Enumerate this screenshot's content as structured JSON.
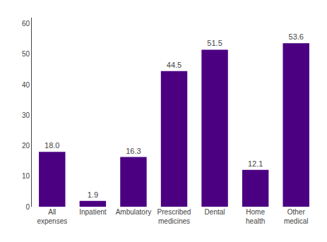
{
  "chart_data": {
    "type": "bar",
    "categories": [
      "All\nexpenses",
      "Inpatient",
      "Ambulatory",
      "Prescribed\nmedicines",
      "Dental",
      "Home\nhealth",
      "Other\nmedical"
    ],
    "values": [
      18.0,
      1.9,
      16.3,
      44.5,
      51.5,
      12.1,
      53.6
    ],
    "value_labels": [
      "18.0",
      "1.9",
      "16.3",
      "44.5",
      "51.5",
      "12.1",
      "53.6"
    ],
    "data_labels": true,
    "color": "#4b0082",
    "ylim": [
      0,
      62
    ],
    "yticks": [
      0,
      10,
      20,
      30,
      40,
      50,
      60
    ],
    "grid": false
  }
}
